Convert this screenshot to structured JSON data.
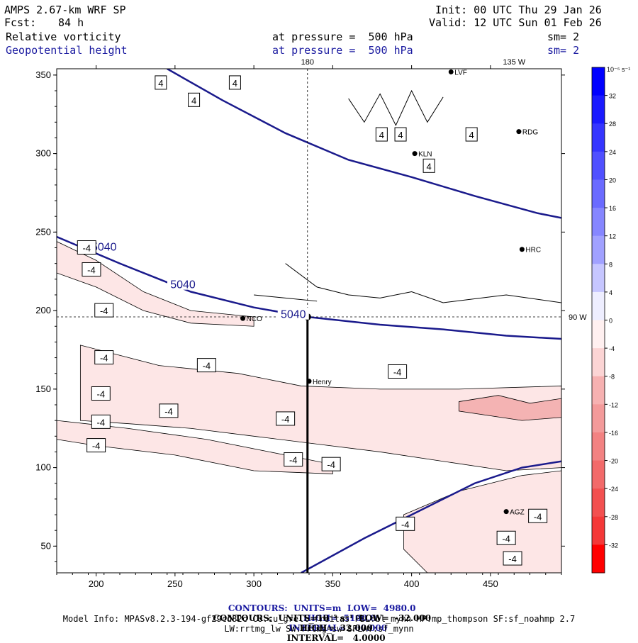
{
  "header": {
    "model": "AMPS 2.67-km WRF SP",
    "fcst_label": "Fcst:",
    "fcst_value": "84 h",
    "init": "Init: 00 UTC Thu 29 Jan 26",
    "valid": "Valid: 12 UTC Sun 01 Feb 26",
    "field1": "Relative vorticity",
    "field1_level": "at pressure =  500 hPa",
    "field1_sm": "sm= 2",
    "field2": "Geopotential height",
    "field2_level": "at pressure =  500 hPa",
    "field2_sm": "sm= 2"
  },
  "chart_data": {
    "type": "contour",
    "xlim": [
      175,
      495
    ],
    "ylim": [
      33,
      354
    ],
    "x_ticks": [
      200,
      250,
      300,
      350,
      400,
      450
    ],
    "y_ticks": [
      50,
      100,
      150,
      200,
      250,
      300,
      350
    ],
    "meridian_labels": [
      {
        "text": "180",
        "x": 334,
        "edge": "top"
      },
      {
        "text": "135 W",
        "x": 465,
        "edge": "top"
      },
      {
        "text": "90 W",
        "y": 196,
        "edge": "right"
      }
    ],
    "crosshair": {
      "x": 334,
      "y": 196
    },
    "cross_section_line": {
      "x": 334,
      "y_from": 196,
      "y_to": 33
    },
    "stations": [
      {
        "name": "LVF",
        "x": 425,
        "y": 352
      },
      {
        "name": "RDG",
        "x": 468,
        "y": 314
      },
      {
        "name": "KLN",
        "x": 402,
        "y": 300
      },
      {
        "name": "HRC",
        "x": 470,
        "y": 239
      },
      {
        "name": "NCO",
        "x": 293,
        "y": 195
      },
      {
        "name": "Henry",
        "x": 335,
        "y": 155
      },
      {
        "name": "AGZ",
        "x": 460,
        "y": 72
      }
    ],
    "height_contours": [
      {
        "value": 5040,
        "label": "5040",
        "points": [
          [
            175,
            247
          ],
          [
            215,
            230
          ],
          [
            260,
            212
          ],
          [
            300,
            202
          ],
          [
            334,
            196
          ],
          [
            380,
            191
          ],
          [
            420,
            188
          ],
          [
            460,
            184
          ],
          [
            495,
            182
          ]
        ]
      },
      {
        "value": 5100,
        "label": "",
        "points": [
          [
            245,
            354
          ],
          [
            280,
            334
          ],
          [
            320,
            313
          ],
          [
            360,
            296
          ],
          [
            400,
            285
          ],
          [
            440,
            273
          ],
          [
            480,
            262
          ],
          [
            495,
            259
          ]
        ]
      },
      {
        "value": 4980,
        "label": "",
        "points": [
          [
            330,
            33
          ],
          [
            370,
            55
          ],
          [
            410,
            75
          ],
          [
            440,
            90
          ],
          [
            470,
            100
          ],
          [
            495,
            104
          ]
        ]
      }
    ],
    "height_labels": [
      {
        "text": "5040",
        "x": 205,
        "y": 240
      },
      {
        "text": "5040",
        "x": 255,
        "y": 216
      },
      {
        "text": "5040",
        "x": 325,
        "y": 197
      }
    ],
    "vort_labels": [
      {
        "text": "4",
        "x": 241,
        "y": 345
      },
      {
        "text": "4",
        "x": 262,
        "y": 334
      },
      {
        "text": "4",
        "x": 288,
        "y": 345
      },
      {
        "text": "4",
        "x": 381,
        "y": 312
      },
      {
        "text": "4",
        "x": 393,
        "y": 312
      },
      {
        "text": "4",
        "x": 411,
        "y": 292
      },
      {
        "text": "4",
        "x": 438,
        "y": 312
      },
      {
        "text": "-4",
        "x": 194,
        "y": 240
      },
      {
        "text": "-4",
        "x": 197,
        "y": 226
      },
      {
        "text": "-4",
        "x": 205,
        "y": 200
      },
      {
        "text": "-4",
        "x": 205,
        "y": 170
      },
      {
        "text": "-4",
        "x": 246,
        "y": 136
      },
      {
        "text": "-4",
        "x": 203,
        "y": 147
      },
      {
        "text": "-4",
        "x": 203,
        "y": 129
      },
      {
        "text": "-4",
        "x": 200,
        "y": 114
      },
      {
        "text": "-4",
        "x": 270,
        "y": 165
      },
      {
        "text": "-4",
        "x": 320,
        "y": 131
      },
      {
        "text": "-4",
        "x": 325,
        "y": 105
      },
      {
        "text": "-4",
        "x": 349,
        "y": 102
      },
      {
        "text": "-4",
        "x": 391,
        "y": 161
      },
      {
        "text": "-4",
        "x": 396,
        "y": 64
      },
      {
        "text": "-4",
        "x": 460,
        "y": 55
      },
      {
        "text": "-4",
        "x": 464,
        "y": 42
      },
      {
        "text": "-4",
        "x": 480,
        "y": 69
      }
    ],
    "colorbar": {
      "unit_label": "10⁻⁵ s⁻¹",
      "levels": [
        36,
        32,
        28,
        24,
        20,
        16,
        12,
        8,
        4,
        0,
        -4,
        -8,
        -12,
        -16,
        -20,
        -24,
        -28,
        -32,
        -36
      ],
      "tick_labels": [
        "32",
        "28",
        "24",
        "20",
        "16",
        "12",
        "8",
        "4",
        "0",
        "-4",
        "-8",
        "-12",
        "-16",
        "-20",
        "-24",
        "-28",
        "-32"
      ],
      "colors": [
        "#0000ff",
        "#1a1aff",
        "#3535ff",
        "#5050ff",
        "#6b6bff",
        "#8686ff",
        "#a1a1ff",
        "#c6c6ff",
        "#eeeeff",
        "#fff0f0",
        "#fbd4d4",
        "#f6b1b1",
        "#f39a9a",
        "#f28282",
        "#f26a6a",
        "#f25050",
        "#f43838",
        "#ff0000"
      ]
    }
  },
  "footer": {
    "line1_a": "CONTOURS:  UNITS=m  LOW=  4980.0",
    "line1_b": "HIGH=  5100.0",
    "line1_c": "INTERVAL=   60.000",
    "line2_a": "CONTOURS:  UNITS=10⁻⁵ s⁻¹  LOW=  -32.000",
    "line2_b": "HIGH=  32.000",
    "line2_c": "INTERVAL=   4.0000",
    "model_info": "Model Info: MPASv8.2.3-194-gf29cd82c CU:cu_grell_freitas PBL:bl_mynn MP:mp_thompson SF:sf_noahmp 2.7",
    "model_info2": "LW:rrtmg_lw SW:rrtmg_sw SFLAY:sf_mynn"
  },
  "colors": {
    "height_line": "#1a1a8c",
    "vort_fill": "#fde6e6",
    "vort_fill_strong": "#f4b3b3"
  }
}
